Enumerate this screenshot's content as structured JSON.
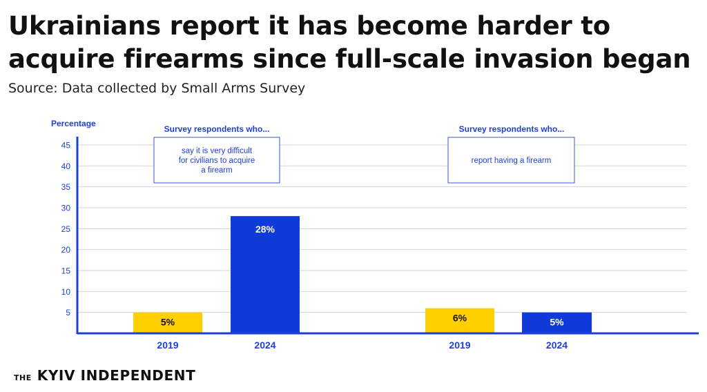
{
  "title_line1": "Ukrainians report it has become harder to",
  "title_line2": "acquire firearms since full-scale invasion began",
  "subtitle": "Source: Data collected by Small Arms Survey",
  "logo": {
    "the": "THE",
    "name": "KYIV INDEPENDENT"
  },
  "colors": {
    "yellow": "#FFD000",
    "blue": "#0F3BDB",
    "axis": "#1E3FD6",
    "text_blue": "#1E3FD6",
    "grid": "#d4d4d4"
  },
  "chart_data": {
    "type": "bar",
    "title": "Ukrainians report it has become harder to acquire firearms since full-scale invasion began",
    "ylabel": "Percentage",
    "ylim": [
      0,
      45
    ],
    "yticks": [
      5,
      10,
      15,
      20,
      25,
      30,
      35,
      40,
      45
    ],
    "grid": true,
    "groups": [
      {
        "header": "Survey respondents who...",
        "label": "say it is very difficult for civilians to acquire a firearm",
        "label_lines": [
          "say it is very difficult",
          "for civilians to acquire",
          "a firearm"
        ],
        "bars": [
          {
            "category": "2019",
            "value": 5,
            "value_label": "5%",
            "color": "yellow"
          },
          {
            "category": "2024",
            "value": 28,
            "value_label": "28%",
            "color": "blue"
          }
        ]
      },
      {
        "header": "Survey respondents who...",
        "label": "report having a firearm",
        "label_lines": [
          "report having a firearm"
        ],
        "bars": [
          {
            "category": "2019",
            "value": 6,
            "value_label": "6%",
            "color": "yellow"
          },
          {
            "category": "2024",
            "value": 5,
            "value_label": "5%",
            "color": "blue"
          }
        ]
      }
    ]
  }
}
